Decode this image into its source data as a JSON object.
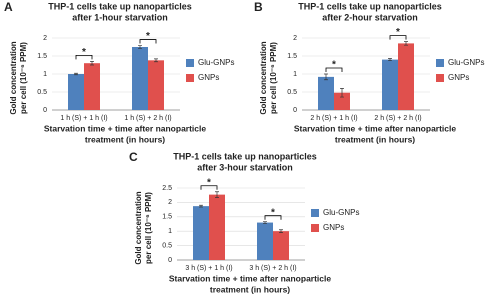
{
  "chart_data": [
    {
      "type": "bar",
      "panel": "A",
      "title": [
        "THP-1 cells take up nanoparticles",
        "after 1-hour starvation"
      ],
      "ylabel": [
        "Gold concentration",
        "per cell (10⁻⁶ PPM)"
      ],
      "xlabel": [
        "Starvation time + time after nanoparticle",
        "treatment (in hours)"
      ],
      "categories": [
        "1 h (S) + 1 h (I)",
        "1 h (S) + 2 h (I)"
      ],
      "series": [
        {
          "name": "Glu-GNPs",
          "color": "#4f81bd",
          "values": [
            1.0,
            1.75
          ],
          "errors": [
            0.02,
            0.04
          ]
        },
        {
          "name": "GNPs",
          "color": "#e0504d",
          "values": [
            1.3,
            1.38
          ],
          "errors": [
            0.05,
            0.04
          ]
        }
      ],
      "annotations": [
        "*",
        "*"
      ],
      "ylim": [
        0,
        2
      ],
      "yticks": [
        0,
        0.5,
        1,
        1.5,
        2
      ],
      "grid": true
    },
    {
      "type": "bar",
      "panel": "B",
      "title": [
        "THP-1 cells take up nanoparticles",
        "after 2-hour starvation"
      ],
      "ylabel": [
        "Gold concentration",
        "per cell (10⁻⁶ PPM)"
      ],
      "xlabel": [
        "Starvation time + time after nanoparticle",
        "treatment (in hours)"
      ],
      "categories": [
        "2 h (S) + 1 h (I)",
        "2 h (S) + 2 h (I)"
      ],
      "series": [
        {
          "name": "Glu-GNPs",
          "color": "#4f81bd",
          "values": [
            0.92,
            1.4
          ],
          "errors": [
            0.08,
            0.03
          ]
        },
        {
          "name": "GNPs",
          "color": "#e0504d",
          "values": [
            0.48,
            1.85
          ],
          "errors": [
            0.12,
            0.05
          ]
        }
      ],
      "annotations": [
        "*",
        "*"
      ],
      "ylim": [
        0,
        2
      ],
      "yticks": [
        0,
        0.5,
        1,
        1.5,
        2
      ],
      "grid": true
    },
    {
      "type": "bar",
      "panel": "C",
      "title": [
        "THP-1 cells take up nanoparticles",
        "after 3-hour starvation"
      ],
      "ylabel": [
        "Gold concentration",
        "per cell (10⁻⁶ PPM)"
      ],
      "xlabel": [
        "Starvation time + time after nanoparticle",
        "treatment (in hours)"
      ],
      "categories": [
        "3 h (S) + 1 h (I)",
        "3 h (S) + 2 h (I)"
      ],
      "series": [
        {
          "name": "Glu-GNPs",
          "color": "#4f81bd",
          "values": [
            1.87,
            1.3
          ],
          "errors": [
            0.03,
            0.03
          ]
        },
        {
          "name": "GNPs",
          "color": "#e0504d",
          "values": [
            2.27,
            1.0
          ],
          "errors": [
            0.1,
            0.05
          ]
        }
      ],
      "annotations": [
        "*",
        "*"
      ],
      "ylim": [
        0,
        2.5
      ],
      "yticks": [
        0,
        0.5,
        1,
        1.5,
        2,
        2.5
      ],
      "grid": true
    }
  ]
}
